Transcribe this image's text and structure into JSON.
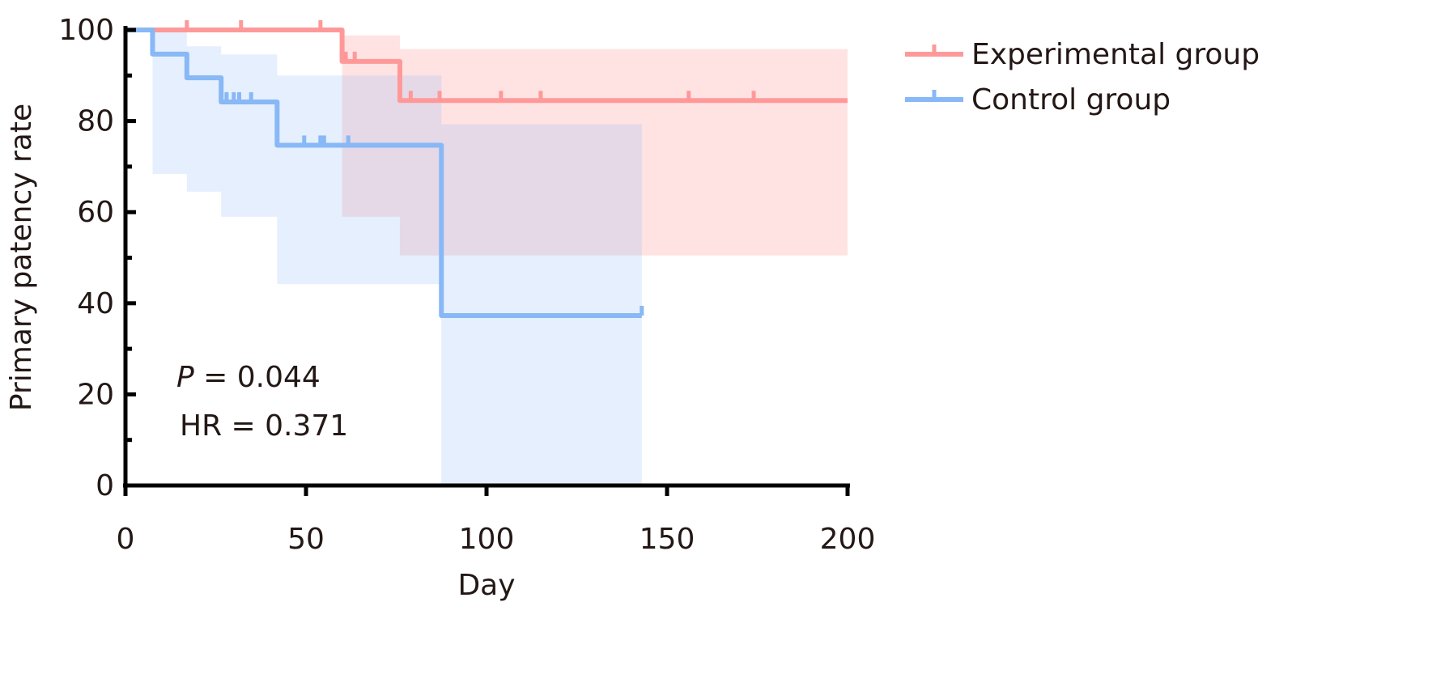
{
  "chart_data": {
    "type": "line",
    "subtype": "kaplan-meier step",
    "xlabel": "Day",
    "ylabel": "Primary patency rate",
    "xlim": [
      0,
      200
    ],
    "ylim": [
      0,
      100
    ],
    "xticks": [
      0,
      50,
      100,
      150,
      200
    ],
    "yticks": [
      0,
      20,
      40,
      60,
      80,
      100
    ],
    "grid": false,
    "legend_position": "top-right, outside plot",
    "annotations": {
      "p_label": "P",
      "p_value": " = 0.044",
      "hr": "HR = 0.371"
    },
    "series": [
      {
        "name": "Experimental group",
        "color": "#ff9999",
        "steps": [
          [
            0,
            100
          ],
          [
            60,
            93.1
          ],
          [
            76,
            84.5
          ]
        ],
        "end": 200,
        "censored": [
          [
            17,
            100
          ],
          [
            32,
            100
          ],
          [
            54,
            100
          ],
          [
            61,
            93.1
          ],
          [
            63.5,
            93.1
          ],
          [
            79,
            84.5
          ],
          [
            87,
            84.5
          ],
          [
            104,
            84.5
          ],
          [
            115,
            84.5
          ],
          [
            156,
            84.5
          ],
          [
            174,
            84.5
          ]
        ],
        "ci": [
          {
            "from": 60,
            "to": 76,
            "lower": 59,
            "upper": 98.8
          },
          {
            "from": 76,
            "to": 200,
            "lower": 50.5,
            "upper": 95.8
          }
        ]
      },
      {
        "name": "Control group",
        "color": "#88b8f5",
        "steps": [
          [
            0,
            100
          ],
          [
            7.5,
            94.7
          ],
          [
            17,
            89.5
          ],
          [
            26.5,
            84.2
          ],
          [
            42,
            74.7
          ],
          [
            87.5,
            37.3
          ]
        ],
        "end": 143,
        "censored": [
          [
            28,
            84.2
          ],
          [
            30,
            84.2
          ],
          [
            31.5,
            84.2
          ],
          [
            34.8,
            84.2
          ],
          [
            49.5,
            74.7
          ],
          [
            54,
            74.7
          ],
          [
            55,
            74.7
          ],
          [
            61.7,
            74.7
          ],
          [
            143,
            37.3
          ]
        ],
        "ci": [
          {
            "from": 7.5,
            "to": 17,
            "lower": 68.4,
            "upper": 100
          },
          {
            "from": 17,
            "to": 26.5,
            "lower": 64.5,
            "upper": 96.4
          },
          {
            "from": 26.5,
            "to": 42,
            "lower": 59,
            "upper": 94.6
          },
          {
            "from": 42,
            "to": 87.5,
            "lower": 44.2,
            "upper": 90
          },
          {
            "from": 87.5,
            "to": 143,
            "lower": 0,
            "upper": 79.3
          }
        ]
      }
    ]
  }
}
